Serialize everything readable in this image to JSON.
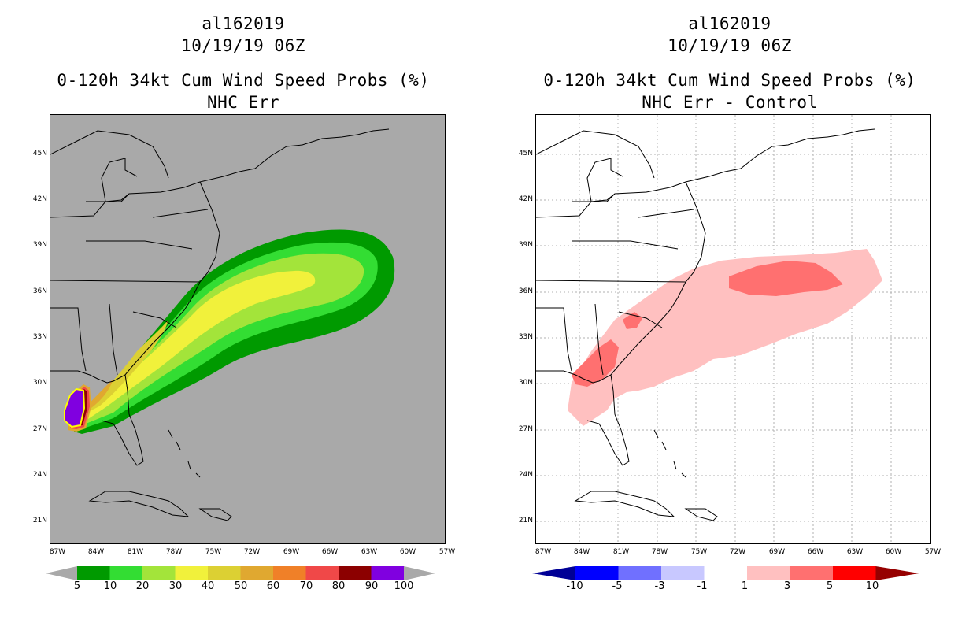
{
  "left_panel": {
    "storm_id": "al162019",
    "datetime": "10/19/19 06Z",
    "title": "0-120h 34kt Cum Wind Speed Probs (%)",
    "subtitle": "NHC Err",
    "colorbar": {
      "labels": [
        "5",
        "10",
        "20",
        "30",
        "40",
        "50",
        "60",
        "70",
        "80",
        "90",
        "100"
      ],
      "colors": [
        "#a9a9a9",
        "#009a00",
        "#33dd33",
        "#a3e43a",
        "#f1f13b",
        "#dcd033",
        "#e0a830",
        "#f08028",
        "#f04848",
        "#8c0000",
        "#8000e0",
        "#a9a9a9"
      ]
    }
  },
  "right_panel": {
    "storm_id": "al162019",
    "datetime": "10/19/19 06Z",
    "title": "0-120h 34kt Cum Wind Speed Probs (%)",
    "subtitle": "NHC Err - Control",
    "colorbar": {
      "labels": [
        "-10",
        "-5",
        "-3",
        "-1",
        "1",
        "3",
        "5",
        "10"
      ],
      "colors": [
        "#000096",
        "#0000ff",
        "#7070ff",
        "#c8c8ff",
        "#ffffff",
        "#ffc0c0",
        "#ff7070",
        "#ff0000",
        "#960000"
      ]
    }
  },
  "axes": {
    "lat_labels": [
      "45N",
      "42N",
      "39N",
      "36N",
      "33N",
      "30N",
      "27N",
      "24N",
      "21N"
    ],
    "lon_labels": [
      "87W",
      "84W",
      "81W",
      "78W",
      "75W",
      "72W",
      "69W",
      "66W",
      "63W",
      "60W",
      "57W"
    ]
  }
}
